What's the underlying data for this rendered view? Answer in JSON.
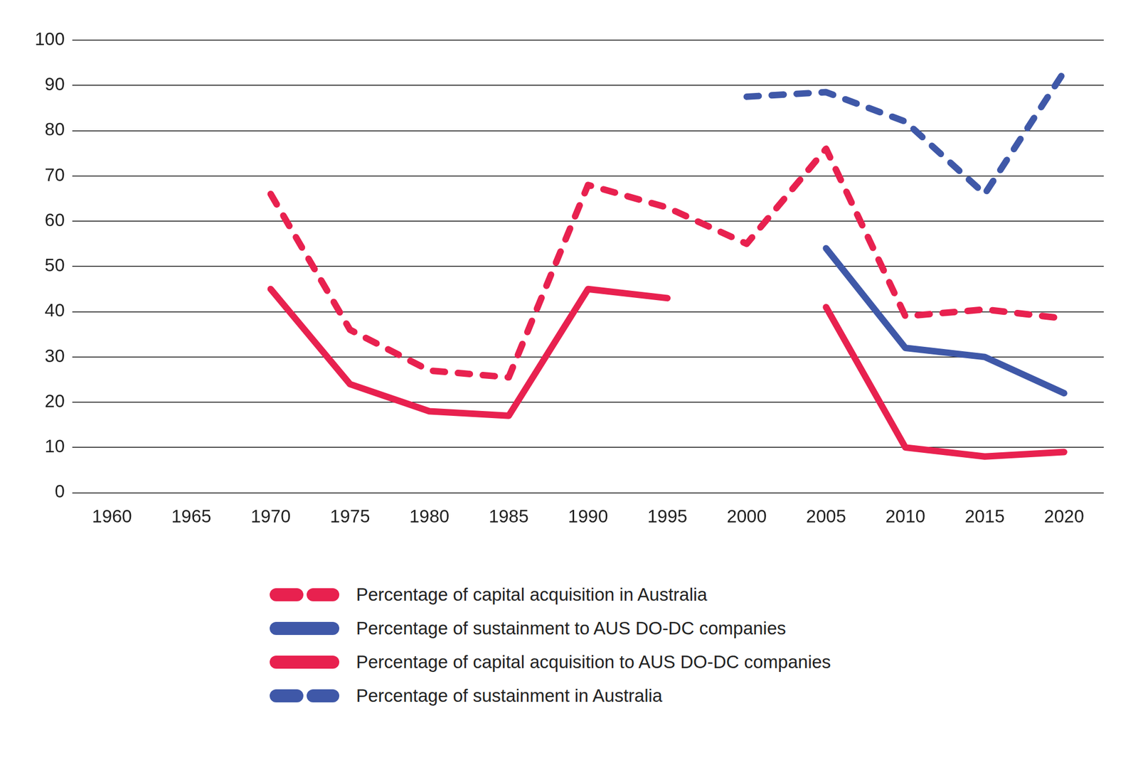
{
  "chart_data": {
    "type": "line",
    "categories": [
      "1960",
      "1965",
      "1970",
      "1975",
      "1980",
      "1985",
      "1990",
      "1995",
      "2000",
      "2005",
      "2010",
      "2015",
      "2020"
    ],
    "series": [
      {
        "name": "Percentage of capital acquisition in Australia",
        "color": "#e8214f",
        "line_style": "dashed",
        "values": [
          null,
          null,
          66,
          36,
          27,
          25.5,
          68,
          63,
          55,
          76,
          39,
          40.5,
          38.5
        ]
      },
      {
        "name": "Percentage of sustainment to AUS DO-DC companies",
        "color": "#3f58a8",
        "line_style": "solid",
        "values": [
          null,
          null,
          null,
          null,
          null,
          null,
          null,
          null,
          null,
          54,
          32,
          30,
          22
        ]
      },
      {
        "name": "Percentage of capital acquisition to AUS DO-DC companies",
        "color": "#e8214f",
        "line_style": "solid",
        "values": [
          null,
          null,
          45,
          24,
          18,
          17,
          45,
          43,
          null,
          41,
          10,
          8,
          9
        ]
      },
      {
        "name": "Percentage of sustainment in Australia",
        "color": "#3f58a8",
        "line_style": "dashed",
        "values": [
          null,
          null,
          null,
          null,
          null,
          null,
          null,
          null,
          87.5,
          88.5,
          82,
          66,
          93
        ]
      }
    ],
    "ylim": [
      0,
      100
    ],
    "yticks": [
      0,
      10,
      20,
      30,
      40,
      50,
      60,
      70,
      80,
      90,
      100
    ],
    "grid": true,
    "legend": "bottom"
  }
}
